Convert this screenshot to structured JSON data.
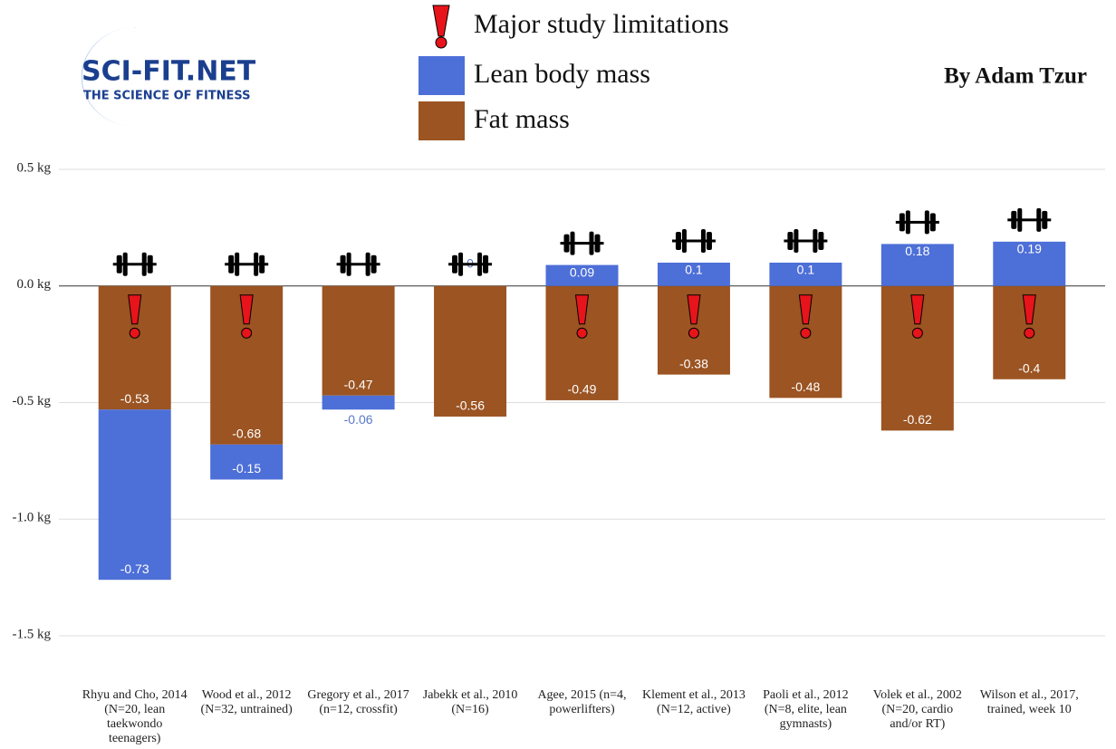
{
  "chart_data": {
    "type": "bar",
    "stacked": true,
    "annotations": [
      "SCI-FIT.NET",
      "THE SCIENCE OF FITNESS",
      "By Adam Tzur",
      "Major study limitations"
    ],
    "categories": [
      "Rhyu and Cho, 2014 (N=20, lean taekwondo teenagers)",
      "Wood et al., 2012 (N=32, untrained)",
      "Gregory et al., 2017 (n=12, crossfit)",
      "Jabekk et al., 2010 (N=16)",
      "Agee, 2015 (n=4, powerlifters)",
      "Klement et al., 2013 (N=12, active)",
      "Paoli et al., 2012 (N=8, elite, lean gymnasts)",
      "Volek et al., 2002 (N=20, cardio and/or RT)",
      "Wilson et al., 2017, trained, week 10"
    ],
    "limitations": [
      true,
      true,
      false,
      false,
      true,
      true,
      true,
      true,
      true
    ],
    "series": [
      {
        "name": "Fat mass",
        "color": "#9b5422",
        "values": [
          -0.53,
          -0.68,
          -0.47,
          -0.56,
          -0.49,
          -0.38,
          -0.48,
          -0.62,
          -0.4
        ]
      },
      {
        "name": "Lean body mass",
        "color": "#4d6fd8",
        "values": [
          -0.73,
          -0.15,
          -0.06,
          0,
          0.09,
          0.1,
          0.1,
          0.18,
          0.19
        ]
      }
    ],
    "ylim": [
      -1.5,
      0.5
    ],
    "yticks": [
      {
        "value": -1.5,
        "label": "-1.5 kg"
      },
      {
        "value": -1.0,
        "label": "-1.0 kg"
      },
      {
        "value": -0.5,
        "label": "-0.5 kg"
      },
      {
        "value": 0,
        "label": "0.0 kg"
      },
      {
        "value": 0.5,
        "label": "0.5 kg"
      }
    ],
    "grid": true
  }
}
